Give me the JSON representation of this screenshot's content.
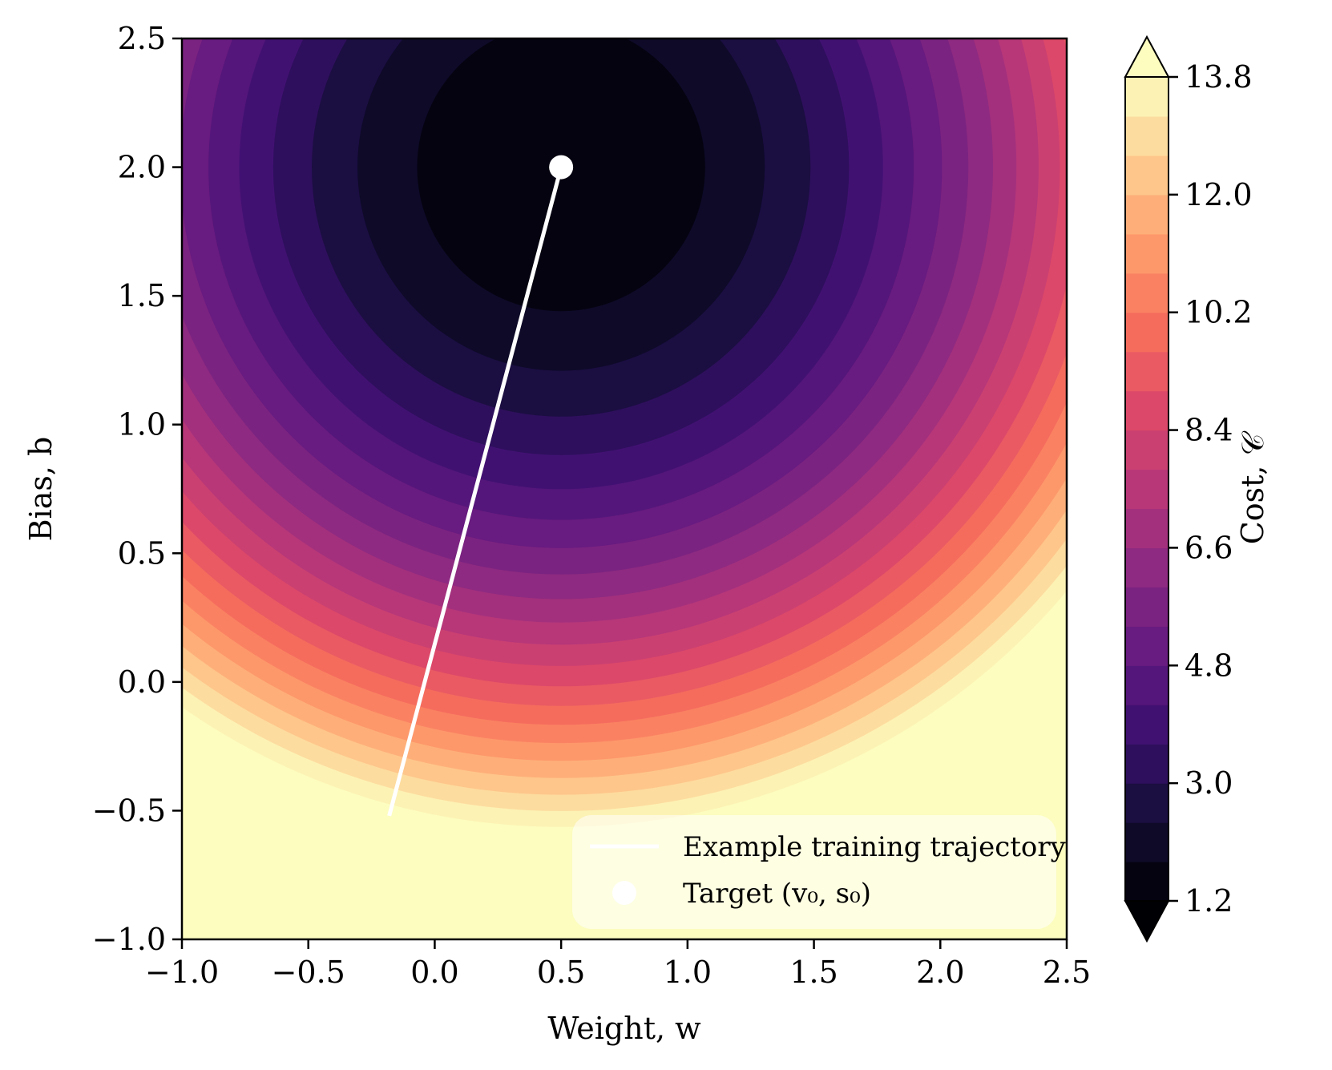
{
  "chart_data": {
    "type": "contour",
    "xlabel": "Weight, w",
    "ylabel": "Bias, b",
    "colorbar_label": "Cost, 𝒞",
    "xlim": [
      -1.0,
      2.5
    ],
    "ylim": [
      -1.0,
      2.5
    ],
    "x_ticks": [
      "−1.0",
      "−0.5",
      "0.0",
      "0.5",
      "1.0",
      "1.5",
      "2.0",
      "2.5"
    ],
    "y_ticks": [
      "−1.0",
      "−0.5",
      "0.0",
      "0.5",
      "1.0",
      "1.5",
      "2.0",
      "2.5"
    ],
    "colorbar_ticks": [
      "1.2",
      "3.0",
      "4.8",
      "6.6",
      "8.4",
      "10.2",
      "12.0",
      "13.8"
    ],
    "colorbar_ticks_values": [
      1.2,
      3.0,
      4.8,
      6.6,
      8.4,
      10.2,
      12.0,
      13.8
    ],
    "levels_min": 1.2,
    "levels_max": 13.8,
    "level_step": 0.6,
    "colorbar_extend": "both",
    "colormap": "magma",
    "target": {
      "w": 0.5,
      "b": 2.0
    },
    "trajectory": {
      "w": [
        -0.18,
        0.5
      ],
      "b": [
        -0.52,
        2.0
      ]
    },
    "legend": {
      "position": "lower right",
      "entries": [
        {
          "label": "Example training trajectory",
          "marker": "line"
        },
        {
          "label": "Target (v₀, s₀)",
          "marker": "dot"
        }
      ]
    }
  }
}
